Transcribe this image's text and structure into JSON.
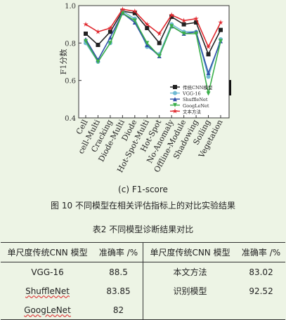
{
  "chart_data": {
    "type": "line",
    "ylabel": "F1分数",
    "ylim": [
      0.4,
      1.0
    ],
    "yticks": [
      "0.4",
      "0.6",
      "0.8",
      "1.0"
    ],
    "legend_position": "bottom-right",
    "categories": [
      "Cell",
      "cell-Multi",
      "Cracking",
      "Diode-Multi",
      "Diode",
      "Hot-Spot-Multi",
      "Hot-Spot",
      "No-Anomaly",
      "Offline-Module",
      "Shadowing",
      "Soiling",
      "Vegetation"
    ],
    "series": [
      {
        "name": "传统CNN模型",
        "color": "#222222",
        "marker": "square",
        "values": [
          0.85,
          0.79,
          0.86,
          0.97,
          0.96,
          0.88,
          0.8,
          0.94,
          0.9,
          0.91,
          0.74,
          0.87
        ]
      },
      {
        "name": "VGG-16",
        "color": "#6fb9d3",
        "marker": "circle",
        "values": [
          0.8,
          0.7,
          0.8,
          0.97,
          0.93,
          0.78,
          0.74,
          0.9,
          0.86,
          0.86,
          0.62,
          0.82
        ]
      },
      {
        "name": "ShuffleNet",
        "color": "#3050a8",
        "marker": "triangle",
        "values": [
          0.82,
          0.71,
          0.83,
          0.96,
          0.91,
          0.79,
          0.73,
          0.89,
          0.85,
          0.86,
          0.64,
          0.81
        ]
      },
      {
        "name": "GoogLeNet",
        "color": "#3bb04a",
        "marker": "triangle-down",
        "values": [
          0.81,
          0.7,
          0.8,
          0.96,
          0.92,
          0.8,
          0.73,
          0.89,
          0.85,
          0.85,
          0.53,
          0.81
        ]
      },
      {
        "name": "文本方法",
        "color": "#e0282e",
        "marker": "star",
        "values": [
          0.9,
          0.86,
          0.88,
          0.98,
          0.97,
          0.9,
          0.85,
          0.95,
          0.92,
          0.93,
          0.78,
          0.91
        ]
      }
    ]
  },
  "figure": {
    "subcaption": "(c)  F1-score",
    "caption": "图 10    不同模型在相关评估指标上的对比实验结果"
  },
  "table": {
    "caption": "表2    不同模型诊断结果对比",
    "headers": [
      "单尺度传统CNN 模型",
      "准确率 /%",
      "单尺度传统CNN 模型",
      "准确率 /%"
    ],
    "rows": [
      [
        "VGG-16",
        "88.5",
        "本文方法",
        "83.02"
      ],
      [
        "ShuffleNet",
        "83.85",
        "识别模型",
        "92.52"
      ],
      [
        "GoogLeNet",
        "82",
        "",
        ""
      ]
    ]
  }
}
